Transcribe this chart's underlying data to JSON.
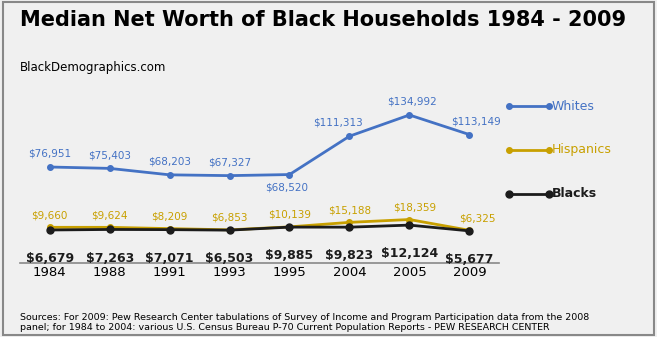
{
  "title": "Median Net Worth of Black Households 1984 - 2009",
  "subtitle": "BlackDemographics.com",
  "years": [
    1984,
    1988,
    1991,
    1993,
    1995,
    2004,
    2005,
    2009
  ],
  "whites": [
    76951,
    75403,
    68203,
    67327,
    68520,
    111313,
    134992,
    113149
  ],
  "hispanics": [
    9660,
    9624,
    8209,
    6853,
    10139,
    15188,
    18359,
    6325
  ],
  "blacks": [
    6679,
    7263,
    7071,
    6503,
    9885,
    9823,
    12124,
    5677
  ],
  "whites_labels": [
    "$76,951",
    "$75,403",
    "$68,203",
    "$67,327",
    "$68,520",
    "$111,313",
    "$134,992",
    "$113,149"
  ],
  "hispanics_labels": [
    "$9,660",
    "$9,624",
    "$8,209",
    "$6,853",
    "$10,139",
    "$15,188",
    "$18,359",
    "$6,325"
  ],
  "blacks_labels": [
    "$6,679",
    "$7,263",
    "$7,071",
    "$6,503",
    "$9,885",
    "$9,823",
    "$12,124",
    "$5,677"
  ],
  "whites_color": "#4472C4",
  "hispanics_color": "#C8A000",
  "blacks_color": "#1C1C1C",
  "background_color": "#F0F0F0",
  "border_color": "#888888",
  "footnote": "Sources: For 2009: Pew Research Center tabulations of Survey of Income and Program Participation data from the 2008\npanel; for 1984 to 2004: various U.S. Census Bureau P-70 Current Population Reports - PEW RESEARCH CENTER",
  "title_fontsize": 15,
  "label_fontsize": 7.5,
  "blacks_label_fontsize": 9,
  "legend_fontsize": 9,
  "footnote_fontsize": 6.8,
  "subtitle_fontsize": 8.5,
  "ylim": [
    -30000,
    158000
  ]
}
